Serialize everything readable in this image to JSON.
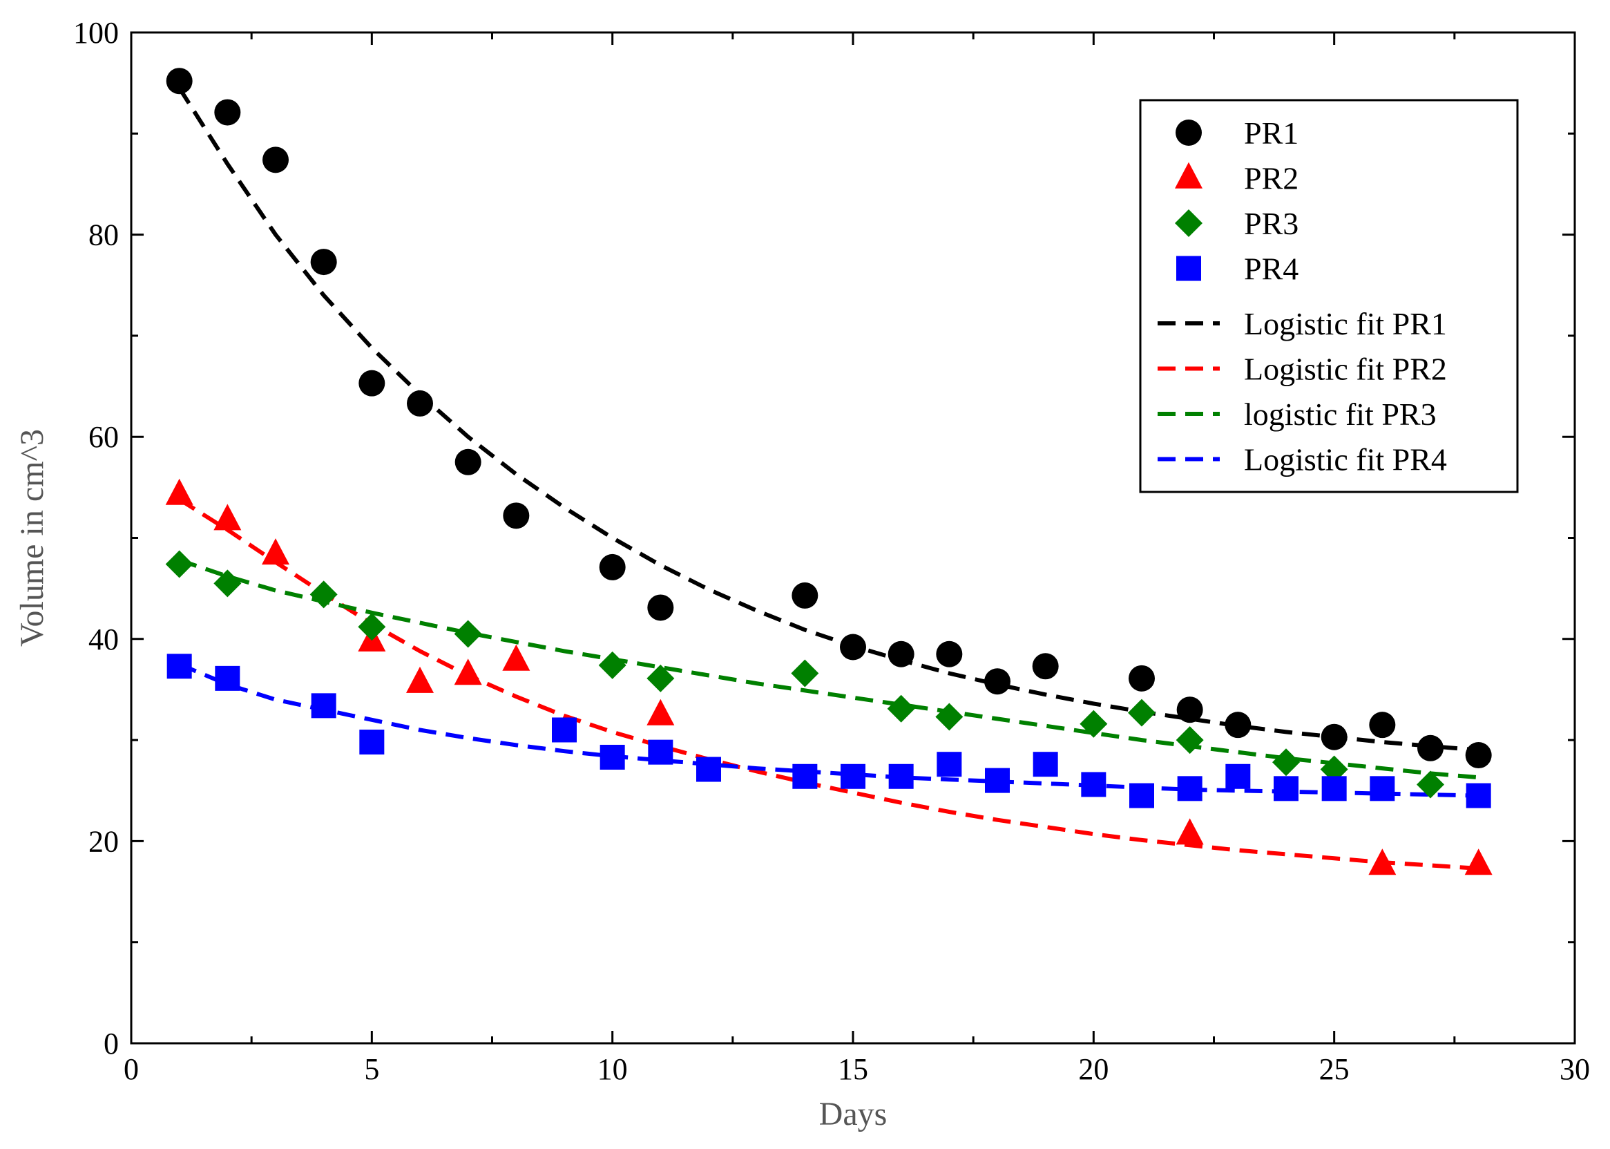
{
  "chart_data": {
    "type": "scatter",
    "title": "",
    "xlabel": "Days",
    "ylabel": "Volume in cm^3",
    "xlim": [
      0,
      30
    ],
    "ylim": [
      0,
      100
    ],
    "xticks": [
      0,
      5,
      10,
      15,
      20,
      25,
      30
    ],
    "yticks": [
      0,
      20,
      40,
      60,
      80,
      100
    ],
    "xtick_labels": [
      "0",
      "5",
      "10",
      "15",
      "20",
      "25",
      "30"
    ],
    "ytick_labels": [
      "0",
      "20",
      "40",
      "60",
      "80",
      "100"
    ],
    "grid": false,
    "legend_position": "top-right",
    "series": [
      {
        "name": "PR1",
        "marker": "circle",
        "color": "#000000",
        "x": [
          1,
          2,
          3,
          4,
          5,
          6,
          7,
          8,
          10,
          11,
          14,
          15,
          16,
          17,
          18,
          19,
          21,
          22,
          23,
          25,
          26,
          27,
          28
        ],
        "y": [
          95.2,
          92.1,
          87.4,
          77.3,
          65.3,
          63.3,
          57.5,
          52.2,
          47.1,
          43.1,
          44.3,
          39.2,
          38.5,
          38.5,
          35.8,
          37.3,
          36.1,
          33.0,
          31.5,
          30.3,
          31.5,
          29.2,
          28.5
        ]
      },
      {
        "name": "PR2",
        "marker": "triangle",
        "color": "#ff0000",
        "x": [
          1,
          2,
          3,
          5,
          6,
          7,
          8,
          11,
          22,
          26,
          28
        ],
        "y": [
          54.3,
          51.8,
          48.4,
          39.8,
          35.7,
          36.5,
          37.9,
          32.5,
          20.7,
          17.7,
          17.7
        ]
      },
      {
        "name": "PR3",
        "marker": "diamond",
        "color": "#008000",
        "x": [
          1,
          2,
          4,
          5,
          7,
          10,
          11,
          14,
          16,
          17,
          20,
          21,
          22,
          24,
          25,
          27
        ],
        "y": [
          47.4,
          45.5,
          44.4,
          41.2,
          40.5,
          37.4,
          36.1,
          36.6,
          33.1,
          32.3,
          31.6,
          32.7,
          30.0,
          27.8,
          27.1,
          25.6
        ]
      },
      {
        "name": "PR4",
        "marker": "square",
        "color": "#0000ff",
        "x": [
          1,
          2,
          4,
          5,
          9,
          10,
          11,
          12,
          14,
          15,
          16,
          17,
          18,
          19,
          20,
          21,
          22,
          23,
          24,
          25,
          26,
          28
        ],
        "y": [
          37.3,
          36.1,
          33.4,
          29.8,
          31.0,
          28.3,
          28.8,
          27.1,
          26.4,
          26.4,
          26.4,
          27.6,
          26.0,
          27.6,
          25.6,
          24.5,
          25.2,
          26.4,
          25.2,
          25.2,
          25.2,
          24.5
        ]
      }
    ],
    "fits": [
      {
        "name": "Logistic fit PR1",
        "color": "#000000",
        "x": [
          1,
          2,
          3,
          4,
          5,
          6,
          7,
          8,
          9,
          10,
          11,
          12,
          13,
          14,
          15,
          16,
          17,
          18,
          19,
          20,
          21,
          22,
          23,
          24,
          25,
          26,
          27,
          28
        ],
        "y": [
          94.5,
          87.0,
          80.0,
          74.0,
          68.8,
          64.2,
          60.0,
          56.3,
          53.0,
          50.0,
          47.3,
          44.9,
          42.8,
          40.9,
          39.3,
          37.9,
          36.6,
          35.5,
          34.5,
          33.6,
          32.8,
          32.1,
          31.4,
          30.8,
          30.3,
          29.8,
          29.4,
          29.0
        ]
      },
      {
        "name": "Logistic fit PR2",
        "color": "#ff0000",
        "x": [
          1,
          2,
          3,
          4,
          5,
          6,
          7,
          8,
          9,
          10,
          11,
          12,
          13,
          14,
          15,
          16,
          17,
          18,
          19,
          20,
          21,
          22,
          23,
          24,
          25,
          26,
          27,
          28
        ],
        "y": [
          53.8,
          50.8,
          47.6,
          44.5,
          41.5,
          38.8,
          36.4,
          34.3,
          32.4,
          30.8,
          29.4,
          28.1,
          26.9,
          25.8,
          24.8,
          23.8,
          22.9,
          22.1,
          21.4,
          20.7,
          20.1,
          19.6,
          19.1,
          18.7,
          18.3,
          17.9,
          17.6,
          17.3
        ]
      },
      {
        "name": "logistic fit PR3",
        "color": "#008000",
        "x": [
          1,
          2,
          3,
          4,
          5,
          6,
          7,
          8,
          9,
          10,
          11,
          12,
          13,
          14,
          15,
          16,
          17,
          18,
          19,
          20,
          21,
          22,
          23,
          24,
          25,
          26,
          27,
          28
        ],
        "y": [
          47.8,
          46.2,
          44.8,
          43.7,
          42.6,
          41.6,
          40.6,
          39.7,
          38.8,
          38.0,
          37.2,
          36.4,
          35.6,
          34.9,
          34.2,
          33.5,
          32.8,
          32.1,
          31.4,
          30.7,
          30.0,
          29.4,
          28.8,
          28.2,
          27.7,
          27.2,
          26.7,
          26.3
        ]
      },
      {
        "name": "Logistic fit PR4",
        "color": "#0000ff",
        "x": [
          1,
          2,
          3,
          4,
          5,
          6,
          7,
          8,
          9,
          10,
          11,
          12,
          13,
          14,
          15,
          16,
          17,
          18,
          19,
          20,
          21,
          22,
          23,
          24,
          25,
          26,
          27,
          28
        ],
        "y": [
          37.5,
          35.5,
          34.0,
          33.0,
          32.0,
          31.0,
          30.2,
          29.5,
          28.9,
          28.4,
          28.0,
          27.6,
          27.2,
          26.9,
          26.6,
          26.3,
          26.1,
          25.9,
          25.7,
          25.5,
          25.3,
          25.1,
          25.0,
          24.9,
          24.8,
          24.7,
          24.6,
          24.5
        ]
      }
    ]
  }
}
